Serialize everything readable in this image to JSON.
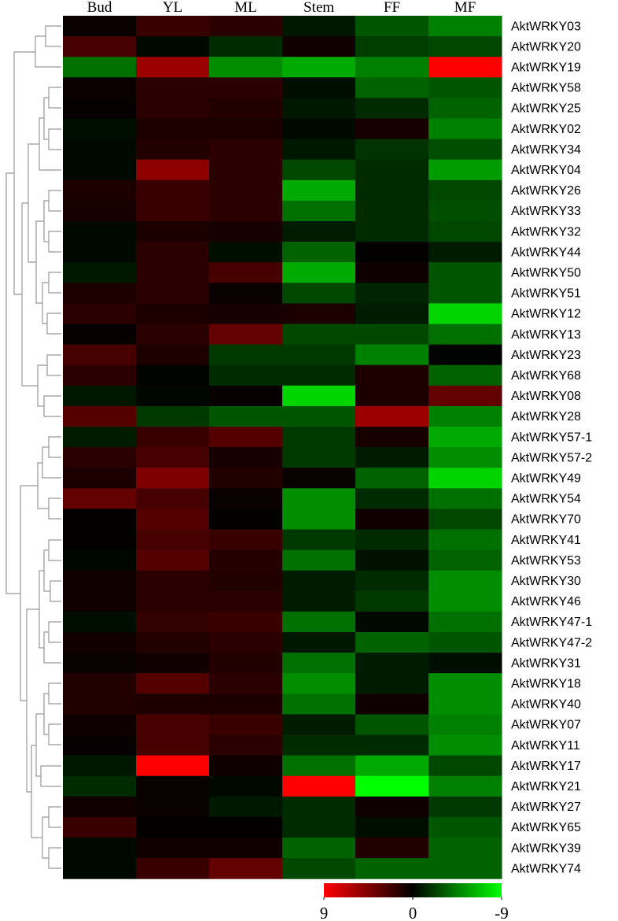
{
  "chart_data": {
    "type": "heatmap",
    "columns": [
      "Bud",
      "YL",
      "ML",
      "Stem",
      "FF",
      "MF"
    ],
    "rows": [
      "AktWRKY03",
      "AktWRKY20",
      "AktWRKY19",
      "AktWRKY58",
      "AktWRKY25",
      "AktWRKY02",
      "AktWRKY34",
      "AktWRKY04",
      "AktWRKY26",
      "AktWRKY33",
      "AktWRKY32",
      "AktWRKY44",
      "AktWRKY50",
      "AktWRKY51",
      "AktWRKY12",
      "AktWRKY13",
      "AktWRKY23",
      "AktWRKY68",
      "AktWRKY08",
      "AktWRKY28",
      "AktWRKY57-1",
      "AktWRKY57-2",
      "AktWRKY49",
      "AktWRKY54",
      "AktWRKY70",
      "AktWRKY41",
      "AktWRKY53",
      "AktWRKY30",
      "AktWRKY46",
      "AktWRKY47-1",
      "AktWRKY47-2",
      "AktWRKY31",
      "AktWRKY18",
      "AktWRKY40",
      "AktWRKY07",
      "AktWRKY11",
      "AktWRKY17",
      "AktWRKY21",
      "AktWRKY27",
      "AktWRKY65",
      "AktWRKY39",
      "AktWRKY74"
    ],
    "values": [
      [
        0.3,
        2,
        1.5,
        -0.8,
        -3,
        -4.5
      ],
      [
        2.5,
        -0.3,
        -1.5,
        0.6,
        -2.2,
        -2.5
      ],
      [
        -4,
        5.5,
        -5,
        -6,
        -4.5,
        9
      ],
      [
        0.4,
        1.5,
        1.5,
        -0.5,
        -3.5,
        -3
      ],
      [
        0.2,
        1.5,
        1.2,
        -0.8,
        -1.5,
        -3.5
      ],
      [
        -0.5,
        1,
        1,
        -0.3,
        0.8,
        -4.5
      ],
      [
        -0.3,
        1.2,
        1.5,
        -0.8,
        -1.8,
        -2.8
      ],
      [
        -0.3,
        5,
        1.5,
        -2.5,
        -1.5,
        -5.5
      ],
      [
        1,
        2,
        1.5,
        -6,
        -1.5,
        -2.5
      ],
      [
        0.8,
        2,
        1.5,
        -4,
        -1.5,
        -2.8
      ],
      [
        -0.3,
        1,
        0.8,
        -1,
        -1.5,
        -2.5
      ],
      [
        -0.3,
        1.5,
        -0.5,
        -3.5,
        0.1,
        -1
      ],
      [
        -0.8,
        1.5,
        2.5,
        -6,
        0.5,
        -3
      ],
      [
        1,
        1.5,
        0.3,
        -2.5,
        -1.3,
        -3
      ],
      [
        1.5,
        1,
        0.8,
        1,
        -1,
        -7.5
      ],
      [
        0.2,
        1.5,
        3.5,
        -2.5,
        -2.5,
        -4
      ],
      [
        2.5,
        1,
        -2,
        -2,
        -4.5,
        -0.1
      ],
      [
        1.5,
        -0.1,
        -1.5,
        -1.5,
        1,
        -3.5
      ],
      [
        -0.8,
        -0.2,
        0.2,
        -7.5,
        1,
        3.5
      ],
      [
        3,
        -2,
        -3,
        -3,
        5.5,
        -4.5
      ],
      [
        -1,
        2,
        3,
        -2,
        0.8,
        -6
      ],
      [
        1.5,
        2.5,
        0.8,
        -2,
        -1,
        -5
      ],
      [
        1,
        4.5,
        1.2,
        0.3,
        -3.5,
        -7.5
      ],
      [
        3.5,
        2.5,
        0.3,
        -5,
        -1.5,
        -4
      ],
      [
        0.1,
        3,
        0.1,
        -5,
        0.6,
        -2.5
      ],
      [
        0.1,
        2.5,
        2,
        -2,
        -1.5,
        -4
      ],
      [
        -0.2,
        3,
        1.3,
        -4,
        -0.6,
        -3.5
      ],
      [
        0.6,
        1.5,
        1.2,
        -1,
        -1.5,
        -5
      ],
      [
        0.6,
        1.5,
        1.5,
        -1,
        -2,
        -5
      ],
      [
        -0.5,
        1.8,
        2,
        -4,
        -0.3,
        -4
      ],
      [
        0.6,
        1.2,
        1.5,
        -0.8,
        -3.5,
        -3
      ],
      [
        0.3,
        0.6,
        1.2,
        -4,
        -1,
        -0.5
      ],
      [
        1.2,
        3,
        1.5,
        -5,
        -1,
        -5
      ],
      [
        1.2,
        1,
        1,
        -4,
        0.5,
        -5
      ],
      [
        0.5,
        2.5,
        2,
        -1,
        -3,
        -4.5
      ],
      [
        0.2,
        2.5,
        1.5,
        -1.5,
        -1.5,
        -5
      ],
      [
        -0.8,
        9,
        0.5,
        -4,
        -6,
        -2.5
      ],
      [
        -1.5,
        0.3,
        -0.3,
        9,
        -9,
        -4.5
      ],
      [
        0.6,
        0.3,
        -0.8,
        -1.5,
        0.5,
        -2
      ],
      [
        2,
        0.1,
        0.1,
        -1.5,
        -0.5,
        -3
      ],
      [
        -0.3,
        0.6,
        0.6,
        -3.5,
        1.2,
        -3.5
      ],
      [
        -0.3,
        2,
        3.5,
        -2.5,
        -3.5,
        -3.5
      ]
    ],
    "zlim": [
      9,
      -9
    ],
    "zticks": [
      9,
      0,
      -9
    ],
    "colors": {
      "high": "#ff0000",
      "mid": "#000000",
      "low": "#00ff00"
    }
  }
}
